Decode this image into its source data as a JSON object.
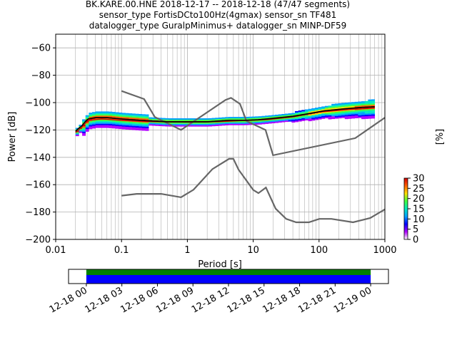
{
  "chart_data": {
    "type": "heatmap",
    "title_lines": [
      "BK.KARE.00.HNE   2018-12-17 -- 2018-12-18  (47/47 segments)",
      "sensor_type FortisDCto100Hz(4gmax) sensor_sn TF481",
      "datalogger_type GuralpMinimus+ datalogger_sn MINP-DF59"
    ],
    "xlabel": "Period [s]",
    "ylabel": "Power [dB]",
    "xscale": "log",
    "xlim": [
      0.01,
      1000
    ],
    "ylim": [
      -200,
      -50
    ],
    "grid": true,
    "xticks": [
      {
        "value": 0.01,
        "label": "0.01"
      },
      {
        "value": 0.1,
        "label": "0.1"
      },
      {
        "value": 1,
        "label": "1"
      },
      {
        "value": 10,
        "label": "10"
      },
      {
        "value": 100,
        "label": "100"
      },
      {
        "value": 1000,
        "label": "1000"
      }
    ],
    "yticks": [
      {
        "value": -60,
        "label": "−60"
      },
      {
        "value": -80,
        "label": "−80"
      },
      {
        "value": -100,
        "label": "−100"
      },
      {
        "value": -120,
        "label": "−120"
      },
      {
        "value": -140,
        "label": "−140"
      },
      {
        "value": -160,
        "label": "−160"
      },
      {
        "value": -180,
        "label": "−180"
      },
      {
        "value": -200,
        "label": "−200"
      }
    ],
    "noise_models": {
      "color": "#666666",
      "high": [
        [
          0.1,
          -91.5
        ],
        [
          0.22,
          -97.4
        ],
        [
          0.32,
          -110.5
        ],
        [
          0.8,
          -120
        ],
        [
          3.8,
          -98
        ],
        [
          4.6,
          -96.5
        ],
        [
          6.3,
          -101
        ],
        [
          7.9,
          -113.5
        ],
        [
          15.4,
          -120
        ],
        [
          20,
          -138.5
        ],
        [
          354.8,
          -126
        ],
        [
          1000,
          -111
        ]
      ],
      "low": [
        [
          0.1,
          -168
        ],
        [
          0.17,
          -166.7
        ],
        [
          0.4,
          -166.7
        ],
        [
          0.8,
          -169.2
        ],
        [
          1.24,
          -163.7
        ],
        [
          2.4,
          -148.6
        ],
        [
          4.3,
          -141.1
        ],
        [
          5.0,
          -141.1
        ],
        [
          6.0,
          -149
        ],
        [
          10,
          -163.8
        ],
        [
          12,
          -166.2
        ],
        [
          15.6,
          -162.1
        ],
        [
          21.9,
          -177.5
        ],
        [
          31.6,
          -185
        ],
        [
          45,
          -187.5
        ],
        [
          70,
          -187.5
        ],
        [
          101,
          -185
        ],
        [
          154,
          -185
        ],
        [
          328,
          -187.5
        ],
        [
          600,
          -184.4
        ],
        [
          1000,
          -178
        ]
      ]
    },
    "mean_psd": {
      "color": "#000000",
      "points": [
        [
          0.02,
          -121
        ],
        [
          0.022,
          -119
        ],
        [
          0.025,
          -117
        ],
        [
          0.028,
          -114
        ],
        [
          0.031,
          -112
        ],
        [
          0.04,
          -111
        ],
        [
          0.06,
          -111
        ],
        [
          0.1,
          -112
        ],
        [
          0.2,
          -113
        ],
        [
          0.5,
          -114
        ],
        [
          1,
          -114
        ],
        [
          2,
          -114
        ],
        [
          4,
          -113
        ],
        [
          7,
          -113
        ],
        [
          12,
          -112.5
        ],
        [
          20,
          -111.5
        ],
        [
          40,
          -110
        ],
        [
          70,
          -108
        ],
        [
          120,
          -106
        ],
        [
          250,
          -104.5
        ],
        [
          450,
          -103.5
        ],
        [
          700,
          -103
        ]
      ]
    },
    "mode_psd": {
      "color": "#cc0000",
      "points": [
        [
          0.02,
          -122
        ],
        [
          0.025,
          -118
        ],
        [
          0.031,
          -113
        ],
        [
          0.05,
          -112
        ],
        [
          0.1,
          -113
        ],
        [
          0.3,
          -114
        ],
        [
          1,
          -114.3
        ],
        [
          3,
          -114
        ],
        [
          8,
          -113
        ],
        [
          16,
          -112.5
        ],
        [
          40,
          -110.5
        ],
        [
          100,
          -107
        ],
        [
          300,
          -105
        ],
        [
          700,
          -104
        ]
      ]
    },
    "colorbar": {
      "label": "[%]",
      "range": [
        0,
        30
      ],
      "ticks": [
        {
          "value": 0,
          "label": "0"
        },
        {
          "value": 5,
          "label": "5"
        },
        {
          "value": 10,
          "label": "10"
        },
        {
          "value": 15,
          "label": "15"
        },
        {
          "value": 20,
          "label": "20"
        },
        {
          "value": 25,
          "label": "25"
        },
        {
          "value": 30,
          "label": "30"
        }
      ],
      "colormap": [
        "#ffffff",
        "#b000ff",
        "#0000ff",
        "#00a0ff",
        "#00e8c0",
        "#40ff40",
        "#ffe000",
        "#ff6000",
        "#d00000"
      ]
    },
    "coverage": {
      "xlim_hours": [
        -1.5,
        25.5
      ],
      "data_span_hours": [
        0,
        24
      ],
      "colors": [
        "#008000",
        "#0000ff"
      ],
      "xticks": [
        {
          "value": 0,
          "label": "12-18 00"
        },
        {
          "value": 3,
          "label": "12-18 03"
        },
        {
          "value": 6,
          "label": "12-18 06"
        },
        {
          "value": 9,
          "label": "12-18 09"
        },
        {
          "value": 12,
          "label": "12-18 12"
        },
        {
          "value": 15,
          "label": "12-18 15"
        },
        {
          "value": 18,
          "label": "12-18 18"
        },
        {
          "value": 21,
          "label": "12-18 21"
        },
        {
          "value": 24,
          "label": "12-19 00"
        }
      ]
    }
  }
}
